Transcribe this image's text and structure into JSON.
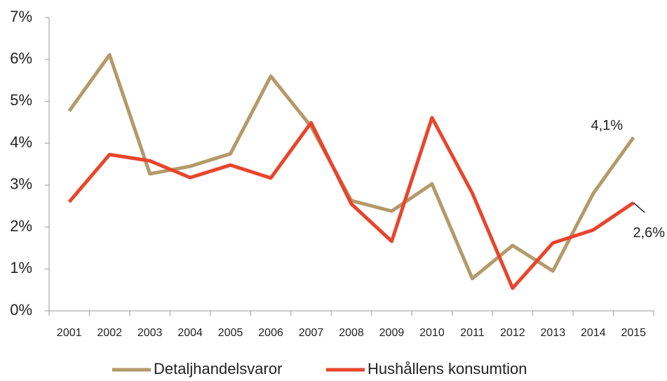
{
  "chart_data": {
    "type": "line",
    "categories": [
      "2001",
      "2002",
      "2003",
      "2004",
      "2005",
      "2006",
      "2007",
      "2008",
      "2009",
      "2010",
      "2011",
      "2012",
      "2013",
      "2014",
      "2015"
    ],
    "series": [
      {
        "name": "Detaljhandelsvaror",
        "color": "#b49a6a",
        "values": [
          4.77,
          6.11,
          3.27,
          3.45,
          3.75,
          5.6,
          4.4,
          2.63,
          2.38,
          3.03,
          0.77,
          1.56,
          0.95,
          2.8,
          4.14
        ],
        "value_labels": [
          null,
          null,
          null,
          null,
          null,
          null,
          null,
          null,
          null,
          null,
          null,
          null,
          null,
          null,
          "4,1%"
        ]
      },
      {
        "name": "Hushållens konsumtion",
        "color": "#e8452c",
        "values": [
          2.6,
          3.73,
          3.58,
          3.18,
          3.48,
          3.17,
          4.49,
          2.55,
          1.66,
          4.61,
          2.81,
          0.54,
          1.62,
          1.93,
          2.58
        ],
        "value_labels": [
          null,
          null,
          null,
          null,
          null,
          null,
          null,
          null,
          null,
          null,
          null,
          null,
          null,
          null,
          "2,6%"
        ]
      }
    ],
    "ylim": [
      0,
      7
    ],
    "yticks": [
      {
        "value": 0,
        "label": "0%"
      },
      {
        "value": 1,
        "label": "1%"
      },
      {
        "value": 2,
        "label": "2%"
      },
      {
        "value": 3,
        "label": "3%"
      },
      {
        "value": 4,
        "label": "4%"
      },
      {
        "value": 5,
        "label": "5%"
      },
      {
        "value": 6,
        "label": "6%"
      },
      {
        "value": 7,
        "label": "7%"
      }
    ],
    "grid": false,
    "legend": "bottom"
  }
}
